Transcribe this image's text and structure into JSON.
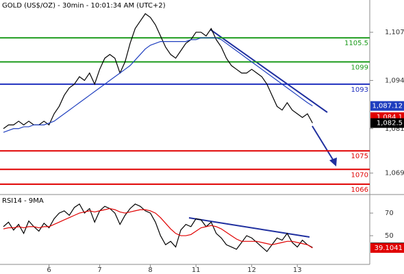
{
  "chart_data": [
    {
      "type": "line",
      "title": "GOLD (US$/OZ) - 30min - 10:01:34 AM (UTC+2)",
      "ylim": [
        1063.4,
        1115.7
      ],
      "yticks": [
        {
          "value": 1107,
          "label": "1,107"
        },
        {
          "value": 1094,
          "label": "1,094"
        },
        {
          "value": 1081,
          "label": "1,081"
        },
        {
          "value": 1069,
          "label": "1,069"
        }
      ],
      "series": [
        {
          "color": "#000000",
          "values": [
            1081,
            1082,
            1082,
            1083,
            1082,
            1083,
            1082,
            1082,
            1083,
            1082,
            1085,
            1087,
            1090,
            1092,
            1093,
            1095,
            1094,
            1096,
            1093,
            1097,
            1100,
            1101,
            1100,
            1096,
            1099,
            1104,
            1108,
            1110,
            1112,
            1111,
            1109,
            1106,
            1103,
            1101,
            1100,
            1102,
            1104,
            1105,
            1107,
            1107,
            1106,
            1108,
            1105,
            1103,
            1100,
            1098,
            1097,
            1096,
            1096,
            1097,
            1096,
            1095,
            1093,
            1090,
            1087,
            1086,
            1088,
            1086,
            1085,
            1084,
            1085,
            1082.5
          ]
        },
        {
          "color": "#1f3fbf",
          "values": [
            1080,
            1080.5,
            1081,
            1081,
            1081.5,
            1081.5,
            1082,
            1082,
            1082,
            1082.5,
            1083,
            1084,
            1085,
            1086,
            1087,
            1088,
            1089,
            1090,
            1091,
            1092,
            1093,
            1094,
            1095,
            1096,
            1097,
            1098,
            1099.5,
            1101,
            1102.5,
            1103.5,
            1104,
            1104.5,
            1104.5,
            1104.5,
            1104.5,
            1104.5,
            1104.5,
            1105,
            1105,
            1105.5,
            1105.5,
            1105.5,
            1105.5,
            1105,
            1104,
            1103,
            1102,
            1101,
            1100,
            1099,
            1098,
            1097,
            1096,
            1095,
            1094,
            1093,
            1092,
            1091,
            1090,
            1089,
            1088,
            1087.12
          ]
        }
      ],
      "levels": [
        {
          "value": 1105.5,
          "color": "#1a9a1a"
        },
        {
          "value": 1099,
          "color": "#1a9a1a"
        },
        {
          "value": 1093,
          "color": "#1f2fbf"
        },
        {
          "value": 1075,
          "color": "#e00000"
        },
        {
          "value": 1070,
          "color": "#e00000"
        },
        {
          "value": 1066,
          "color": "#e00000"
        }
      ],
      "tags": [
        {
          "value": 1087.12,
          "label": "1,087.12",
          "color": "#1f3fbf"
        },
        {
          "value": 1084.1,
          "label": "1,084.1",
          "color": "#e00000"
        },
        {
          "value": 1082.5,
          "label": "1,082.5",
          "color": "#000000"
        }
      ]
    },
    {
      "type": "line",
      "title": "RSI14 - 9MA",
      "ylim": [
        25.2,
        85.8
      ],
      "yticks": [
        70,
        50
      ],
      "categories": [
        null,
        null,
        null,
        null,
        null,
        null,
        null,
        null,
        null,
        "6",
        null,
        null,
        null,
        null,
        null,
        null,
        null,
        null,
        null,
        "7",
        null,
        null,
        null,
        null,
        null,
        null,
        null,
        null,
        null,
        "8",
        null,
        null,
        null,
        null,
        null,
        null,
        null,
        null,
        "11",
        null,
        null,
        null,
        null,
        null,
        null,
        null,
        null,
        null,
        null,
        "12",
        null,
        null,
        null,
        null,
        null,
        null,
        null,
        null,
        "13",
        null,
        null,
        null
      ],
      "series": [
        {
          "color": "#000000",
          "values": [
            58,
            62,
            55,
            60,
            52,
            63,
            58,
            54,
            61,
            57,
            65,
            70,
            72,
            68,
            75,
            78,
            70,
            74,
            62,
            72,
            76,
            74,
            70,
            60,
            68,
            74,
            78,
            76,
            72,
            70,
            62,
            50,
            42,
            45,
            40,
            55,
            60,
            58,
            65,
            64,
            58,
            62,
            52,
            48,
            42,
            40,
            38,
            44,
            50,
            48,
            44,
            40,
            36,
            42,
            48,
            46,
            52,
            44,
            40,
            46,
            42,
            39.5964
          ]
        },
        {
          "color": "#e00000",
          "values": [
            56,
            57,
            57,
            58,
            57,
            58,
            58,
            57,
            58,
            58,
            60,
            62,
            64,
            66,
            68,
            70,
            71,
            72,
            71,
            72,
            73,
            74,
            73,
            71,
            70,
            71,
            72,
            73,
            73,
            72,
            70,
            66,
            61,
            56,
            52,
            50,
            50,
            51,
            54,
            57,
            58,
            59,
            58,
            56,
            53,
            50,
            47,
            45,
            45,
            45,
            45,
            44,
            43,
            42,
            43,
            44,
            45,
            45,
            44,
            43,
            42,
            39.1041
          ]
        }
      ],
      "tags": [
        {
          "value": 39.5964,
          "color": "#000000"
        },
        {
          "value": 39.1041,
          "color": "#e00000"
        }
      ]
    }
  ]
}
